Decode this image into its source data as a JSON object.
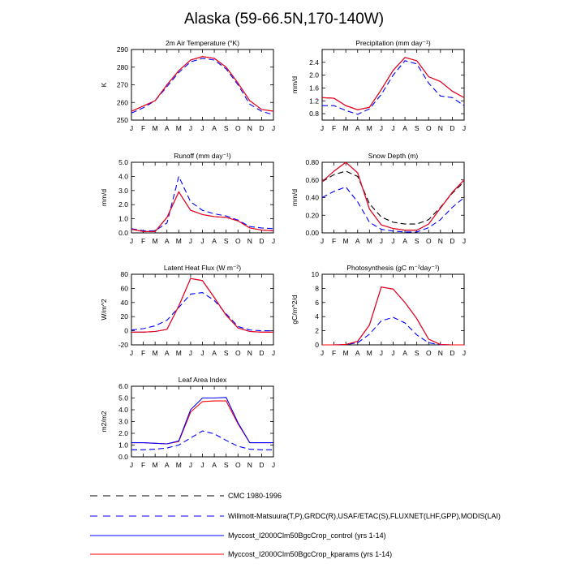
{
  "title": "Alaska (59-66.5N,170-140W)",
  "colors": {
    "cmc": "#000000",
    "obs": "#0000ff",
    "control": "#0000ff",
    "kparams": "#ff0000",
    "axis": "#000000"
  },
  "legend": [
    {
      "key": "cmc",
      "label": "CMC 1980-1996",
      "style": "dashed",
      "color": "#000000"
    },
    {
      "key": "obs",
      "label": "Willmott-Matsuura(T,P),GRDC(R),USAF/ETAC(S),FLUXNET(LHF,GPP),MODIS(LAI)",
      "style": "dashed",
      "color": "#0000ff"
    },
    {
      "key": "control",
      "label": "Myccost_I2000Clm50BgcCrop_control (yrs 1-14)",
      "style": "solid",
      "color": "#0000ff"
    },
    {
      "key": "kparams",
      "label": "Myccost_I2000Clm50BgcCrop_kparams (yrs 1-14)",
      "style": "solid",
      "color": "#ff0000"
    }
  ],
  "chart_data": [
    {
      "id": "air-temp",
      "type": "line",
      "title": "2m Air Temperature (°K)",
      "ylabel": "K",
      "ylim": [
        250,
        290
      ],
      "yticks": [
        250,
        260,
        270,
        280,
        290
      ],
      "categories": [
        "J",
        "F",
        "M",
        "A",
        "M",
        "J",
        "J",
        "A",
        "S",
        "O",
        "N",
        "D",
        "J"
      ],
      "series": [
        {
          "key": "obs",
          "name": "Willmott-Matsuura",
          "values": [
            254,
            257,
            261,
            269,
            277,
            283,
            285,
            284,
            279,
            270,
            259,
            255,
            253
          ]
        },
        {
          "key": "control",
          "name": "control",
          "values": [
            255,
            258,
            261,
            270,
            278,
            284,
            286,
            285,
            280,
            271,
            261,
            256,
            255
          ]
        },
        {
          "key": "kparams",
          "name": "kparams",
          "values": [
            255,
            258,
            261,
            270,
            278,
            284,
            286,
            285,
            280,
            271,
            261,
            256,
            255
          ]
        }
      ]
    },
    {
      "id": "precip",
      "type": "line",
      "title": "Precipitation (mm day⁻¹)",
      "ylabel": "mm/d",
      "ylim": [
        0.6,
        2.8
      ],
      "yticks": [
        0.8,
        1.2,
        1.6,
        2.0,
        2.4
      ],
      "categories": [
        "J",
        "F",
        "M",
        "A",
        "M",
        "J",
        "J",
        "A",
        "S",
        "O",
        "N",
        "D",
        "J"
      ],
      "series": [
        {
          "key": "obs",
          "name": "Willmott-Matsuura",
          "values": [
            1.05,
            1.05,
            0.9,
            0.78,
            0.95,
            1.4,
            2.0,
            2.45,
            2.35,
            1.75,
            1.35,
            1.3,
            1.05
          ]
        },
        {
          "key": "control",
          "name": "control",
          "values": [
            1.3,
            1.28,
            1.05,
            0.92,
            1.0,
            1.55,
            2.15,
            2.55,
            2.45,
            1.95,
            1.8,
            1.5,
            1.3
          ]
        },
        {
          "key": "kparams",
          "name": "kparams",
          "values": [
            1.3,
            1.28,
            1.05,
            0.92,
            1.0,
            1.55,
            2.15,
            2.55,
            2.45,
            1.95,
            1.8,
            1.5,
            1.3
          ]
        }
      ]
    },
    {
      "id": "runoff",
      "type": "line",
      "title": "Runoff (mm day⁻¹)",
      "ylabel": "mm/d",
      "ylim": [
        0,
        5
      ],
      "yticks": [
        0.0,
        1.0,
        2.0,
        3.0,
        4.0,
        5.0
      ],
      "categories": [
        "J",
        "F",
        "M",
        "A",
        "M",
        "J",
        "J",
        "A",
        "S",
        "O",
        "N",
        "D",
        "J"
      ],
      "series": [
        {
          "key": "obs",
          "name": "GRDC",
          "values": [
            0.3,
            0.15,
            0.15,
            0.7,
            4.0,
            2.2,
            1.6,
            1.35,
            1.2,
            0.9,
            0.45,
            0.35,
            0.3
          ]
        },
        {
          "key": "control",
          "name": "control",
          "values": [
            0.25,
            0.1,
            0.1,
            1.1,
            2.9,
            1.6,
            1.3,
            1.15,
            1.1,
            0.85,
            0.35,
            0.2,
            0.15
          ]
        },
        {
          "key": "kparams",
          "name": "kparams",
          "values": [
            0.25,
            0.1,
            0.1,
            1.1,
            2.9,
            1.6,
            1.3,
            1.15,
            1.1,
            0.85,
            0.35,
            0.2,
            0.15
          ]
        }
      ]
    },
    {
      "id": "snow-depth",
      "type": "line",
      "title": "Snow Depth (m)",
      "ylabel": "mm/d",
      "ylim": [
        0,
        0.8
      ],
      "yticks": [
        0.0,
        0.2,
        0.4,
        0.6,
        0.8
      ],
      "categories": [
        "J",
        "F",
        "M",
        "A",
        "M",
        "J",
        "J",
        "A",
        "S",
        "O",
        "N",
        "D",
        "J"
      ],
      "series": [
        {
          "key": "cmc",
          "name": "CMC 1980-1996",
          "values": [
            0.58,
            0.66,
            0.7,
            0.64,
            0.33,
            0.18,
            0.12,
            0.1,
            0.1,
            0.15,
            0.29,
            0.45,
            0.58
          ]
        },
        {
          "key": "obs",
          "name": "USAF/ETAC",
          "values": [
            0.4,
            0.47,
            0.52,
            0.35,
            0.12,
            0.04,
            0.02,
            0.01,
            0.01,
            0.06,
            0.15,
            0.29,
            0.4
          ]
        },
        {
          "key": "control",
          "name": "control",
          "values": [
            0.58,
            0.7,
            0.8,
            0.68,
            0.27,
            0.09,
            0.05,
            0.03,
            0.03,
            0.1,
            0.28,
            0.46,
            0.6
          ]
        },
        {
          "key": "kparams",
          "name": "kparams",
          "values": [
            0.58,
            0.7,
            0.8,
            0.68,
            0.27,
            0.09,
            0.05,
            0.03,
            0.03,
            0.1,
            0.28,
            0.46,
            0.6
          ]
        }
      ]
    },
    {
      "id": "latent-heat",
      "type": "line",
      "title": "Latent Heat Flux (W m⁻²)",
      "ylabel": "W/m^2",
      "ylim": [
        -20,
        80
      ],
      "yticks": [
        -20,
        0,
        20,
        40,
        60,
        80
      ],
      "categories": [
        "J",
        "F",
        "M",
        "A",
        "M",
        "J",
        "J",
        "A",
        "S",
        "O",
        "N",
        "D",
        "J"
      ],
      "series": [
        {
          "key": "obs",
          "name": "FLUXNET",
          "values": [
            1,
            3,
            7,
            15,
            33,
            52,
            54,
            43,
            24,
            6,
            1,
            0,
            0
          ]
        },
        {
          "key": "control",
          "name": "control",
          "values": [
            -2,
            -2,
            -1,
            2,
            35,
            74,
            71,
            47,
            22,
            4,
            -1,
            -2,
            -2
          ]
        },
        {
          "key": "kparams",
          "name": "kparams",
          "values": [
            -2,
            -2,
            -1,
            2,
            35,
            74,
            71,
            47,
            22,
            4,
            -1,
            -2,
            -2
          ]
        }
      ]
    },
    {
      "id": "photosynthesis",
      "type": "line",
      "title": "Photosynthesis (gC m⁻²day⁻¹)",
      "ylabel": "gC/m^2/d",
      "ylim": [
        0,
        10
      ],
      "yticks": [
        0,
        2,
        4,
        6,
        8,
        10
      ],
      "categories": [
        "J",
        "F",
        "M",
        "A",
        "M",
        "J",
        "J",
        "A",
        "S",
        "O",
        "N",
        "D",
        "J"
      ],
      "series": [
        {
          "key": "obs",
          "name": "FLUXNET",
          "values": [
            0,
            0,
            0.05,
            0.3,
            1.5,
            3.4,
            3.9,
            3.1,
            1.4,
            0.3,
            0,
            0,
            0
          ]
        },
        {
          "key": "control",
          "name": "control",
          "values": [
            0,
            0,
            0.05,
            0.5,
            2.8,
            8.2,
            7.9,
            6.0,
            3.7,
            0.8,
            0.05,
            0,
            0
          ]
        },
        {
          "key": "kparams",
          "name": "kparams",
          "values": [
            0,
            0,
            0.05,
            0.5,
            2.8,
            8.2,
            7.9,
            6.0,
            3.7,
            0.8,
            0.05,
            0,
            0
          ]
        }
      ]
    },
    {
      "id": "lai",
      "type": "line",
      "title": "Leaf Area Index",
      "ylabel": "m2/m2",
      "ylim": [
        0,
        6
      ],
      "yticks": [
        0.0,
        1.0,
        2.0,
        3.0,
        4.0,
        5.0,
        6.0
      ],
      "categories": [
        "J",
        "F",
        "M",
        "A",
        "M",
        "J",
        "J",
        "A",
        "S",
        "O",
        "N",
        "D",
        "J"
      ],
      "series": [
        {
          "key": "obs",
          "name": "MODIS",
          "values": [
            0.6,
            0.6,
            0.65,
            0.75,
            1.0,
            1.6,
            2.2,
            1.95,
            1.4,
            0.9,
            0.65,
            0.6,
            0.6
          ]
        },
        {
          "key": "kparams",
          "name": "kparams",
          "values": [
            1.2,
            1.2,
            1.15,
            1.1,
            1.3,
            3.8,
            4.7,
            4.75,
            4.75,
            2.8,
            1.2,
            1.2,
            1.2
          ]
        },
        {
          "key": "control",
          "name": "control",
          "values": [
            1.2,
            1.2,
            1.15,
            1.1,
            1.35,
            4.0,
            5.0,
            5.0,
            5.05,
            2.9,
            1.2,
            1.2,
            1.2
          ]
        }
      ]
    }
  ]
}
